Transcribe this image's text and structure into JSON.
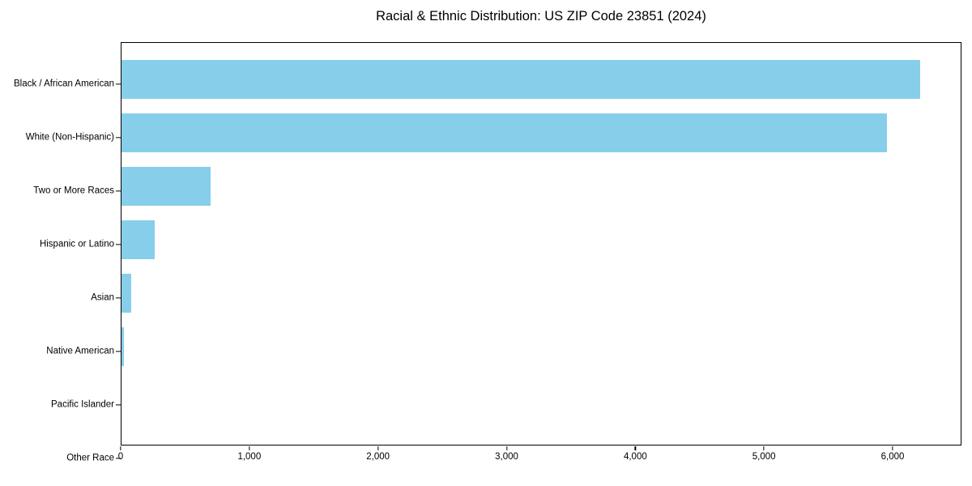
{
  "page": {
    "background_color": "#ffffff",
    "text_color": "#000000"
  },
  "chart_data": {
    "type": "bar",
    "orientation": "horizontal",
    "title": "Racial & Ethnic Distribution: US ZIP Code 23851 (2024)",
    "categories": [
      "Black / African American",
      "White (Non-Hispanic)",
      "Two or More Races",
      "Hispanic or Latino",
      "Asian",
      "Native American",
      "Pacific Islander",
      "Other Race"
    ],
    "values": [
      6220,
      5960,
      695,
      260,
      75,
      20,
      0,
      0
    ],
    "xlabel": "",
    "ylabel": "",
    "xlim": [
      0,
      6535
    ],
    "xticks": [
      0,
      1000,
      2000,
      3000,
      4000,
      5000,
      6000
    ],
    "xtick_labels": [
      "0",
      "1,000",
      "2,000",
      "3,000",
      "4,000",
      "5,000",
      "6,000"
    ],
    "bar_color": "#87CEEB",
    "axis_color": "#000000",
    "grid": false,
    "legend": "none"
  }
}
